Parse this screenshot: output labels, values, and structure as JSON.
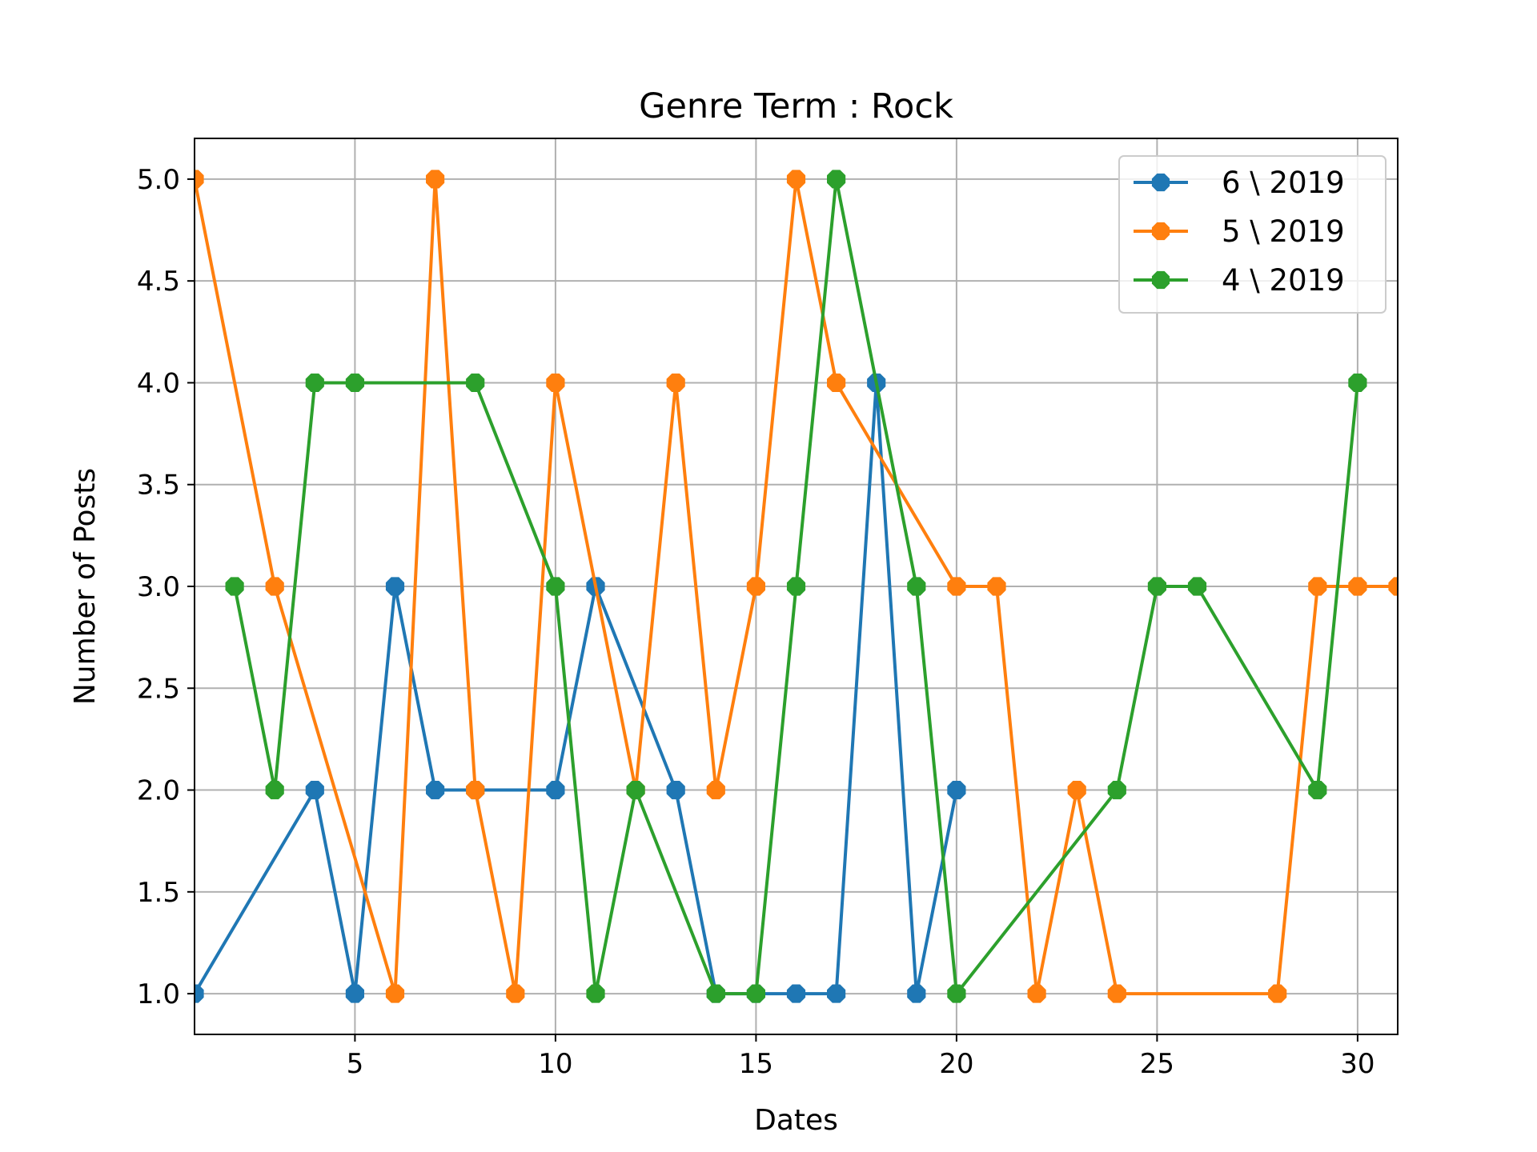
{
  "chart_data": {
    "type": "line",
    "title": "Genre Term : Rock",
    "xlabel": "Dates",
    "ylabel": "Number of Posts",
    "xlim": [
      1,
      31
    ],
    "ylim": [
      0.8,
      5.2
    ],
    "xticks": [
      5,
      10,
      15,
      20,
      25,
      30
    ],
    "xtick_labels": [
      "5",
      "10",
      "15",
      "20",
      "25",
      "30"
    ],
    "yticks": [
      1.0,
      1.5,
      2.0,
      2.5,
      3.0,
      3.5,
      4.0,
      4.5,
      5.0
    ],
    "ytick_labels": [
      "1.0",
      "1.5",
      "2.0",
      "2.5",
      "3.0",
      "3.5",
      "4.0",
      "4.5",
      "5.0"
    ],
    "grid": true,
    "legend_position": "top-right",
    "series": [
      {
        "name": "6 \\ 2019",
        "color": "#1f77b4",
        "x": [
          1,
          4,
          5,
          6,
          7,
          8,
          10,
          11,
          13,
          14,
          15,
          16,
          17,
          18,
          19,
          20
        ],
        "y": [
          1,
          2,
          1,
          3,
          2,
          2,
          2,
          3,
          2,
          1,
          1,
          1,
          1,
          4,
          1,
          2
        ]
      },
      {
        "name": "5 \\ 2019",
        "color": "#ff7f0e",
        "x": [
          1,
          3,
          6,
          7,
          8,
          9,
          10,
          12,
          13,
          14,
          15,
          16,
          17,
          20,
          21,
          22,
          23,
          24,
          28,
          29,
          30,
          31
        ],
        "y": [
          5,
          3,
          1,
          5,
          2,
          1,
          4,
          2,
          4,
          2,
          3,
          5,
          4,
          3,
          3,
          1,
          2,
          1,
          1,
          3,
          3,
          3
        ]
      },
      {
        "name": "4 \\ 2019",
        "color": "#2ca02c",
        "x": [
          2,
          3,
          4,
          5,
          8,
          10,
          11,
          12,
          14,
          15,
          16,
          17,
          19,
          20,
          24,
          25,
          26,
          29,
          30
        ],
        "y": [
          3,
          2,
          4,
          4,
          4,
          3,
          1,
          2,
          1,
          1,
          3,
          5,
          3,
          1,
          2,
          3,
          3,
          2,
          4
        ]
      }
    ]
  }
}
